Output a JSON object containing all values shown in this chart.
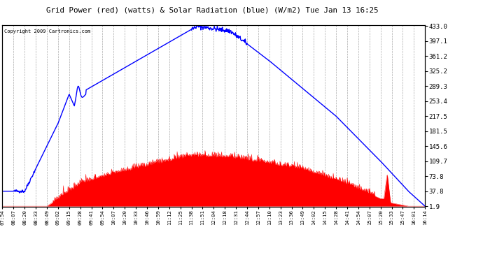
{
  "title": "Grid Power (red) (watts) & Solar Radiation (blue) (W/m2) Tue Jan 13 16:25",
  "copyright": "Copyright 2009 Cartronics.com",
  "y_ticks_right": [
    1.9,
    37.8,
    73.8,
    109.7,
    145.6,
    181.5,
    217.5,
    253.4,
    289.3,
    325.2,
    361.2,
    397.1,
    433.0
  ],
  "y_min": 0,
  "y_max": 433.0,
  "x_labels": [
    "07:54",
    "08:07",
    "08:20",
    "08:33",
    "08:49",
    "09:02",
    "09:15",
    "09:28",
    "09:41",
    "09:54",
    "10:07",
    "10:20",
    "10:33",
    "10:46",
    "10:59",
    "11:12",
    "11:25",
    "11:38",
    "11:51",
    "12:04",
    "12:18",
    "12:31",
    "12:44",
    "12:57",
    "13:10",
    "13:23",
    "13:36",
    "13:49",
    "14:02",
    "14:15",
    "14:28",
    "14:41",
    "14:54",
    "15:07",
    "15:20",
    "15:33",
    "15:47",
    "16:01",
    "16:14"
  ],
  "bg_color": "#ffffff",
  "plot_bg_color": "#ffffff",
  "blue_line_color": "#0000ff",
  "red_fill_color": "#ff0000",
  "grid_color": "#aaaaaa",
  "title_color": "#000000",
  "border_color": "#000000"
}
